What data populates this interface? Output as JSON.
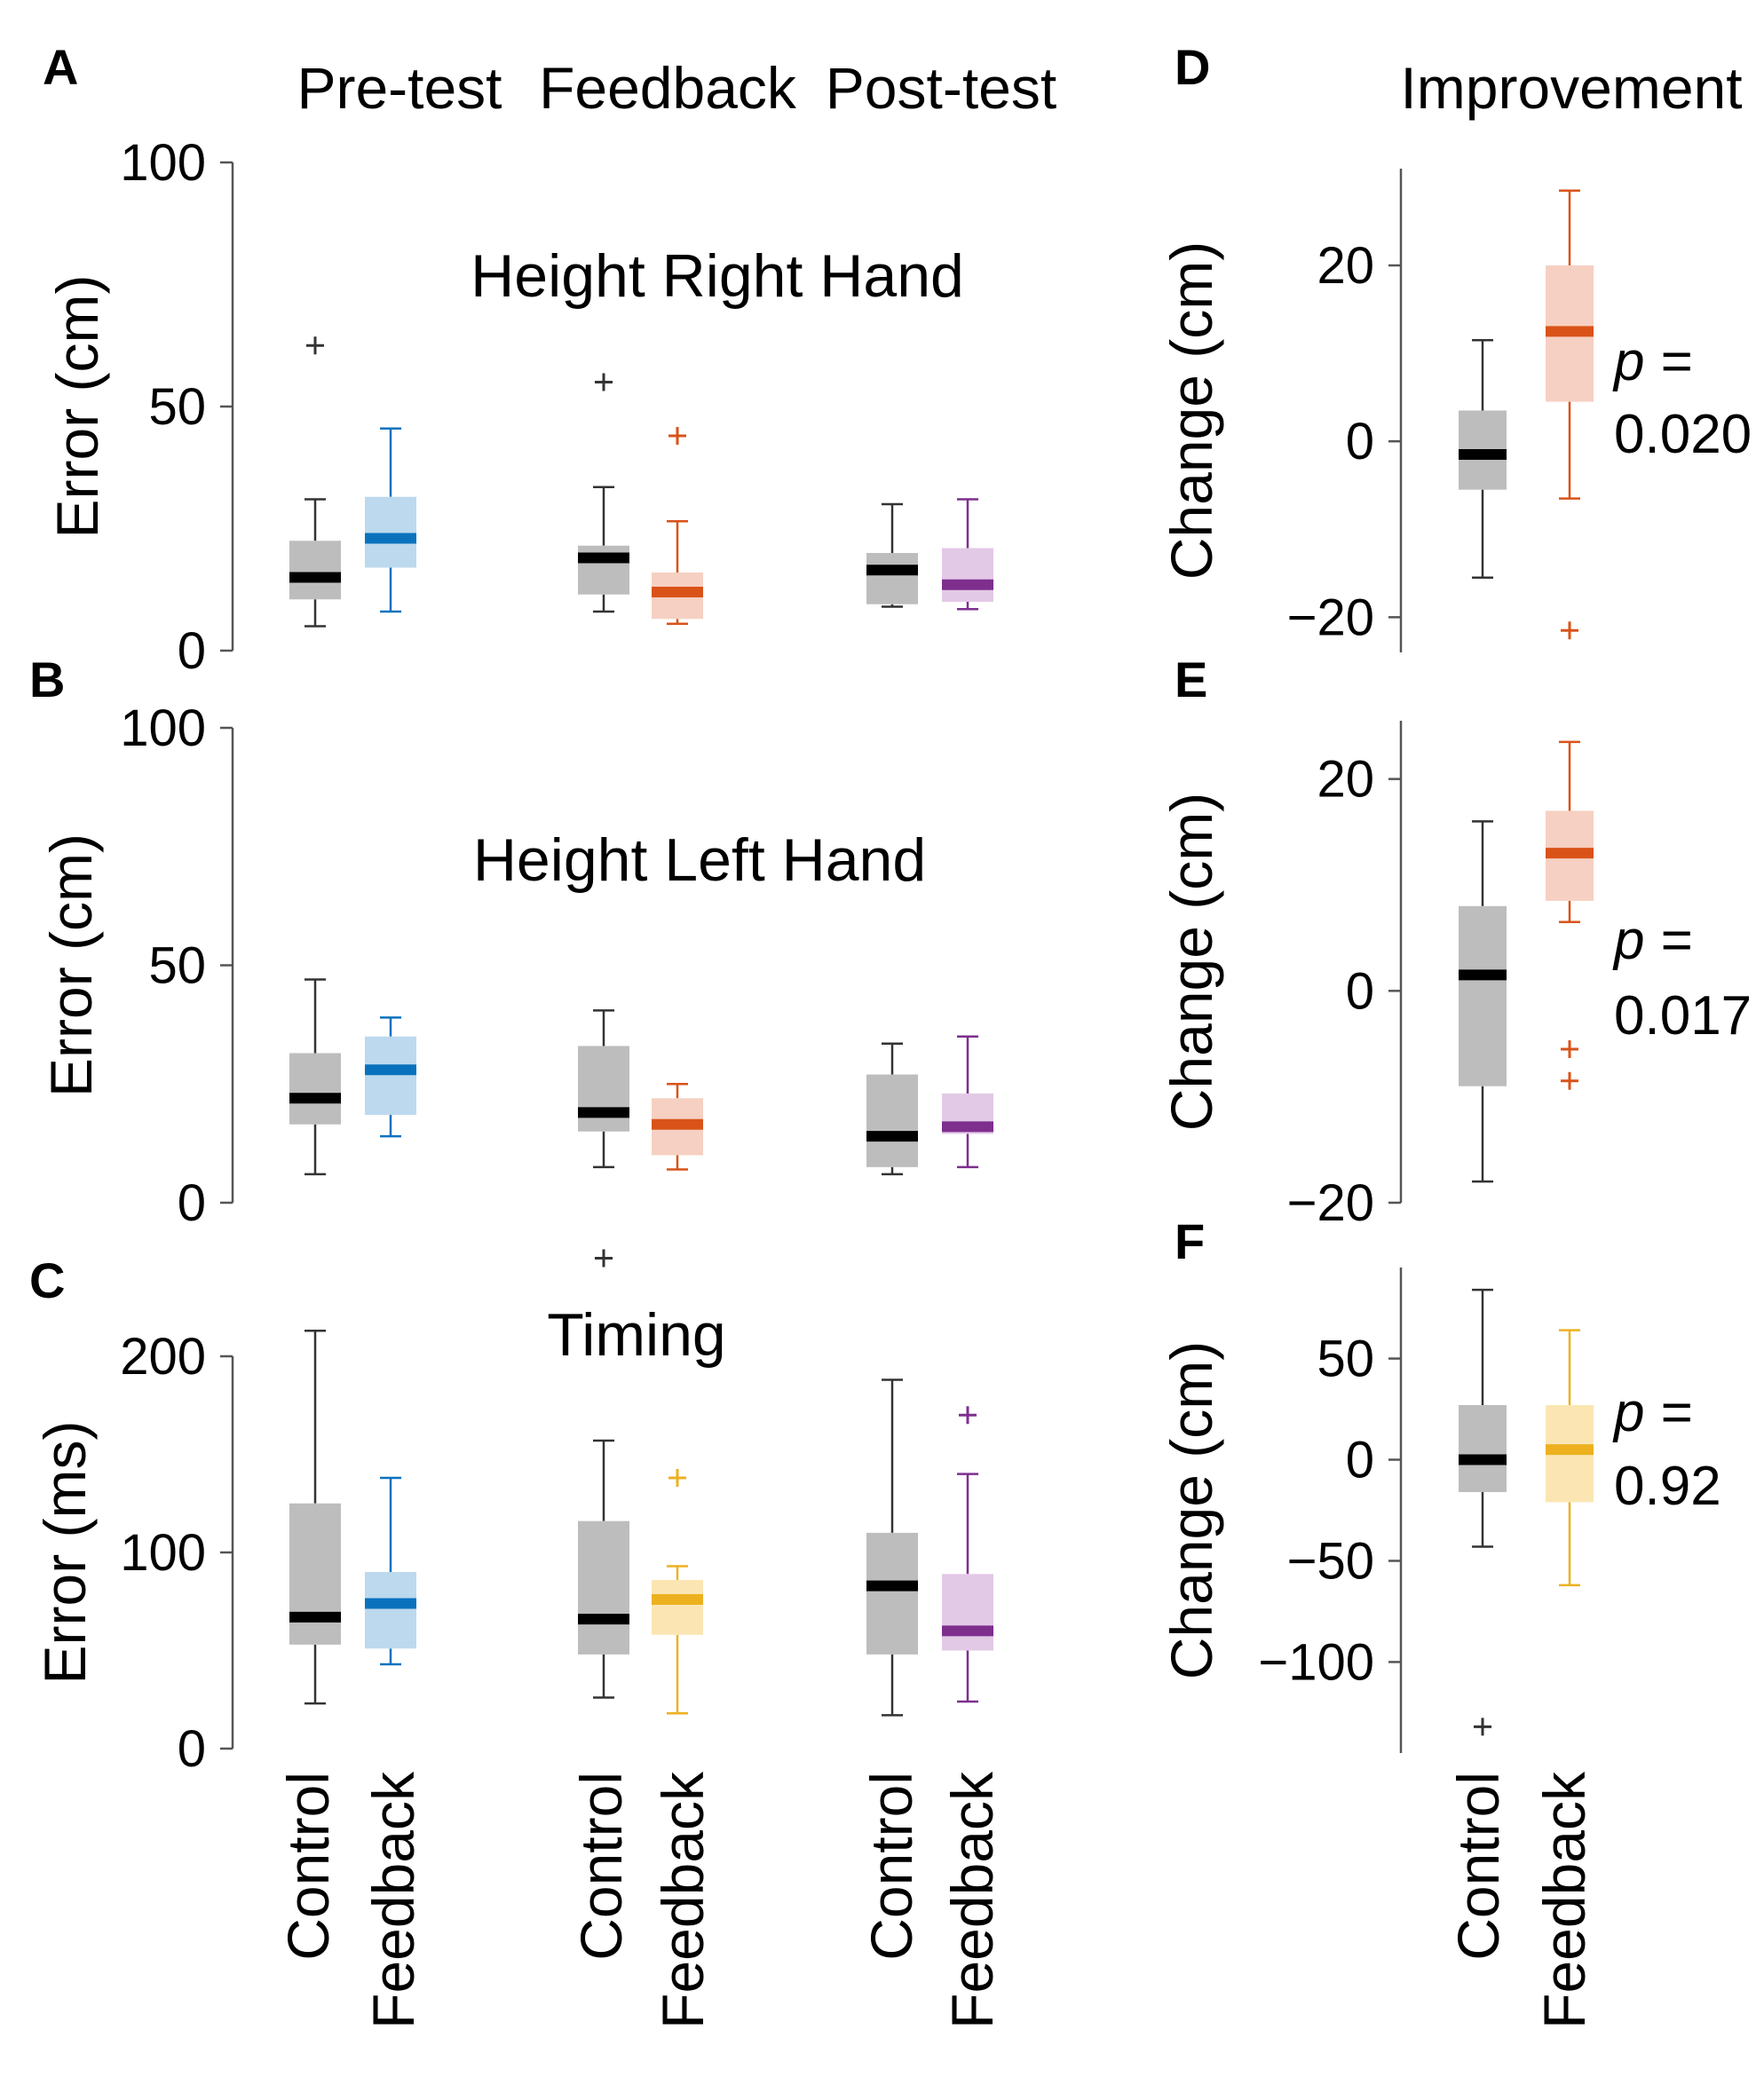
{
  "figure": {
    "column_titles": [
      "Pre-test",
      "Feedback",
      "Post-test"
    ],
    "improvement_title": "Improvement",
    "x_category_labels": [
      "Control",
      "Feedback",
      "Control",
      "Feedback",
      "Control",
      "Feedback"
    ],
    "improvement_category_labels": [
      "Control",
      "Feedback"
    ],
    "p_prefix": "p ="
  },
  "colors": {
    "control_box": "#bdbdbd",
    "control_median": "#000000",
    "control_line": "#333333",
    "blue_fill": "#bcd9ee",
    "blue_line": "#0a72bd",
    "orange_fill": "#f6d0c2",
    "orange_line": "#d95319",
    "purple_fill": "#e2c9e6",
    "purple_line": "#7e2f8e",
    "yellow_fill": "#fbe6b3",
    "yellow_line": "#edb120",
    "axis": "#555555"
  },
  "chart_data": [
    {
      "panel": "A",
      "type": "box",
      "title": "Height Right Hand",
      "ylabel": "Error (cm)",
      "ylim": [
        0,
        100
      ],
      "yticks": [
        0,
        50,
        100
      ],
      "categories": [
        "Control",
        "Feedback",
        "Control",
        "Feedback",
        "Control",
        "Feedback"
      ],
      "groups": [
        "Pre-test",
        "Pre-test",
        "Feedback",
        "Feedback",
        "Post-test",
        "Post-test"
      ],
      "boxes": [
        {
          "color": "control",
          "whisker_low": 5,
          "q1": 10.5,
          "median": 15,
          "q3": 22.5,
          "whisker_high": 31,
          "outliers": [
            62.5
          ]
        },
        {
          "color": "blue",
          "whisker_low": 8,
          "q1": 17,
          "median": 23,
          "q3": 31.5,
          "whisker_high": 45.5,
          "outliers": []
        },
        {
          "color": "control",
          "whisker_low": 8,
          "q1": 11.5,
          "median": 19,
          "q3": 21.5,
          "whisker_high": 33.5,
          "outliers": [
            55
          ]
        },
        {
          "color": "orange",
          "whisker_low": 5.5,
          "q1": 6.5,
          "median": 12,
          "q3": 16,
          "whisker_high": 26.5,
          "outliers": [
            44
          ]
        },
        {
          "color": "control",
          "whisker_low": 9,
          "q1": 9.5,
          "median": 16.5,
          "q3": 20,
          "whisker_high": 30,
          "outliers": []
        },
        {
          "color": "purple",
          "whisker_low": 8.5,
          "q1": 10,
          "median": 13.5,
          "q3": 21,
          "whisker_high": 31,
          "outliers": []
        }
      ]
    },
    {
      "panel": "B",
      "type": "box",
      "title": "Height Left Hand",
      "ylabel": "Error (cm)",
      "ylim": [
        0,
        100
      ],
      "yticks": [
        0,
        50,
        100
      ],
      "categories": [
        "Control",
        "Feedback",
        "Control",
        "Feedback",
        "Control",
        "Feedback"
      ],
      "groups": [
        "Pre-test",
        "Pre-test",
        "Feedback",
        "Feedback",
        "Post-test",
        "Post-test"
      ],
      "boxes": [
        {
          "color": "control",
          "whisker_low": 6,
          "q1": 16.5,
          "median": 22,
          "q3": 31.5,
          "whisker_high": 47,
          "outliers": []
        },
        {
          "color": "blue",
          "whisker_low": 14,
          "q1": 18.5,
          "median": 28,
          "q3": 35,
          "whisker_high": 39,
          "outliers": []
        },
        {
          "color": "control",
          "whisker_low": 7.5,
          "q1": 15,
          "median": 19,
          "q3": 33,
          "whisker_high": 40.5,
          "outliers": []
        },
        {
          "color": "orange",
          "whisker_low": 7,
          "q1": 10,
          "median": 16.5,
          "q3": 22,
          "whisker_high": 25,
          "outliers": []
        },
        {
          "color": "control",
          "whisker_low": 6,
          "q1": 7.5,
          "median": 14,
          "q3": 27,
          "whisker_high": 33.5,
          "outliers": []
        },
        {
          "color": "purple",
          "whisker_low": 7.5,
          "q1": 14.5,
          "median": 16,
          "q3": 23,
          "whisker_high": 35,
          "outliers": []
        }
      ]
    },
    {
      "panel": "C",
      "type": "box",
      "title": "Timing",
      "ylabel": "Error (ms)",
      "ylim": [
        0,
        200
      ],
      "yticks": [
        0,
        100,
        200
      ],
      "categories": [
        "Control",
        "Feedback",
        "Control",
        "Feedback",
        "Control",
        "Feedback"
      ],
      "groups": [
        "Pre-test",
        "Pre-test",
        "Feedback",
        "Feedback",
        "Post-test",
        "Post-test"
      ],
      "boxes": [
        {
          "color": "control",
          "whisker_low": 23,
          "q1": 53,
          "median": 67,
          "q3": 125,
          "whisker_high": 213,
          "outliers": []
        },
        {
          "color": "blue",
          "whisker_low": 43,
          "q1": 51,
          "median": 74,
          "q3": 90,
          "whisker_high": 138,
          "outliers": []
        },
        {
          "color": "control",
          "whisker_low": 26,
          "q1": 48,
          "median": 66,
          "q3": 116,
          "whisker_high": 157,
          "outliers": [
            250
          ]
        },
        {
          "color": "yellow",
          "whisker_low": 18,
          "q1": 58,
          "median": 76,
          "q3": 86,
          "whisker_high": 93,
          "outliers": [
            138
          ]
        },
        {
          "color": "control",
          "whisker_low": 17,
          "q1": 48,
          "median": 83,
          "q3": 110,
          "whisker_high": 188,
          "outliers": []
        },
        {
          "color": "purple",
          "whisker_low": 24,
          "q1": 50,
          "median": 60,
          "q3": 89,
          "whisker_high": 140,
          "outliers": [
            170
          ]
        }
      ]
    },
    {
      "panel": "D",
      "type": "box",
      "ylabel": "Change (cm)",
      "ylim": [
        -24,
        31
      ],
      "yticks": [
        -20,
        0,
        20
      ],
      "categories": [
        "Control",
        "Feedback"
      ],
      "p_value": "0.020",
      "boxes": [
        {
          "color": "control",
          "whisker_low": -15.5,
          "q1": -5.5,
          "median": -1.5,
          "q3": 3.5,
          "whisker_high": 11.5,
          "outliers": []
        },
        {
          "color": "orange",
          "whisker_low": -6.5,
          "q1": 4.5,
          "median": 12.5,
          "q3": 20,
          "whisker_high": 28.5,
          "outliers": [
            -21.5
          ]
        }
      ]
    },
    {
      "panel": "E",
      "type": "box",
      "ylabel": "Change (cm)",
      "ylim": [
        -20,
        25.5
      ],
      "yticks": [
        -20,
        0,
        20
      ],
      "categories": [
        "Control",
        "Feedback"
      ],
      "p_value": "0.017",
      "boxes": [
        {
          "color": "control",
          "whisker_low": -18,
          "q1": -9,
          "median": 1.5,
          "q3": 8,
          "whisker_high": 16,
          "outliers": []
        },
        {
          "color": "orange",
          "whisker_low": 6.5,
          "q1": 8.5,
          "median": 13,
          "q3": 17,
          "whisker_high": 23.5,
          "outliers": [
            -5.5,
            -8.5
          ]
        }
      ]
    },
    {
      "panel": "F",
      "type": "box",
      "ylabel": "Change (cm)",
      "ylim": [
        -145,
        95
      ],
      "yticks": [
        -100,
        -50,
        0,
        50
      ],
      "categories": [
        "Control",
        "Feedback"
      ],
      "p_value": "0.92",
      "boxes": [
        {
          "color": "control",
          "whisker_low": -43,
          "q1": -16,
          "median": 0,
          "q3": 27,
          "whisker_high": 84,
          "outliers": [
            -132
          ]
        },
        {
          "color": "yellow",
          "whisker_low": -62,
          "q1": -21,
          "median": 5,
          "q3": 27,
          "whisker_high": 64,
          "outliers": []
        }
      ]
    }
  ]
}
